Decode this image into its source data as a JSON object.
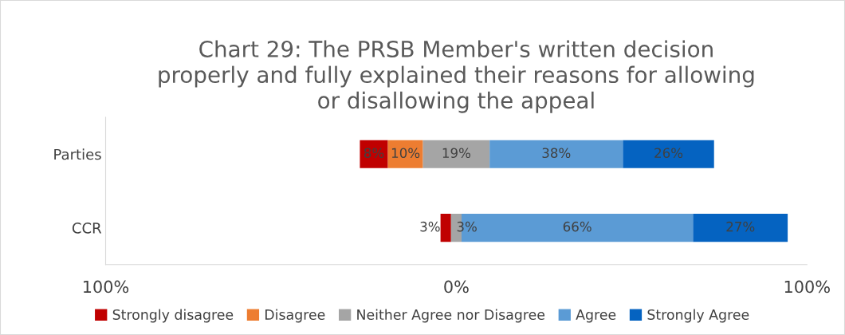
{
  "chart_data": {
    "type": "bar",
    "orientation": "horizontal",
    "title": "Chart 29: The PRSB Member's written decision\nproperly and fully explained their reasons for allowing\nor disallowing the appeal",
    "categories": [
      "Parties",
      "CCR"
    ],
    "xlim": [
      -100,
      100
    ],
    "xticks": [
      {
        "value": -100,
        "label": "100%"
      },
      {
        "value": 0,
        "label": "0%"
      },
      {
        "value": 100,
        "label": "100%"
      }
    ],
    "grid": false,
    "legend": "bottom",
    "series": [
      {
        "name": "Strongly disagree",
        "color": "#c00000",
        "values": [
          8,
          3
        ],
        "base": [
          -27.5,
          -4.5
        ],
        "value_labels": [
          "8%",
          "3%"
        ]
      },
      {
        "name": "Disagree",
        "color": "#ed7d31",
        "values": [
          10,
          null
        ],
        "base": [
          -19.5,
          null
        ],
        "value_labels": [
          "10%",
          null
        ]
      },
      {
        "name": "Neither Agree nor Disagree",
        "color": "#a5a5a5",
        "values": [
          19,
          3
        ],
        "base": [
          -9.5,
          -1.5
        ],
        "value_labels": [
          "19%",
          "3%"
        ]
      },
      {
        "name": "Agree",
        "color": "#5b9bd5",
        "values": [
          38,
          66
        ],
        "base": [
          9.5,
          1.5
        ],
        "value_labels": [
          "38%",
          "66%"
        ]
      },
      {
        "name": "Strongly Agree",
        "color": "#0563c1",
        "values": [
          26,
          27
        ],
        "base": [
          47.5,
          67.5
        ],
        "value_labels": [
          "26%",
          "27%"
        ]
      }
    ]
  }
}
